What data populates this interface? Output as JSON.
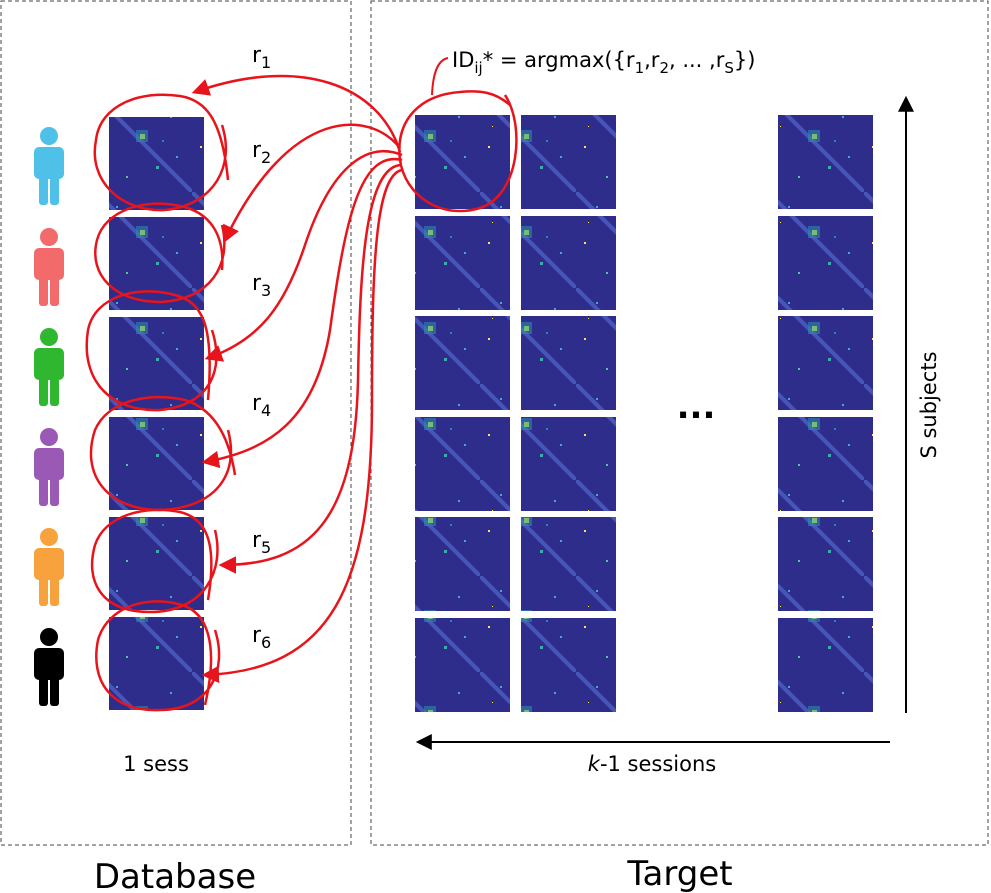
{
  "panels": {
    "database": {
      "title": "Database",
      "caption": "1 sess"
    },
    "target": {
      "title": "Target",
      "x_axis_label_italic": "k",
      "x_axis_label_rest": "-1 sessions",
      "y_axis_label": "S subjects",
      "ellipsis": "..."
    }
  },
  "formula": {
    "lhs": "ID",
    "lhs_sub": "ij",
    "rhs_prefix": "* = argmax({r",
    "r1_sub": "1",
    "sep1": ",r",
    "r2_sub": "2",
    "mid": ", ... ,r",
    "rs_sub": "S",
    "end": "})"
  },
  "correlations": [
    {
      "label": "r",
      "sub": "1"
    },
    {
      "label": "r",
      "sub": "2"
    },
    {
      "label": "r",
      "sub": "3"
    },
    {
      "label": "r",
      "sub": "4"
    },
    {
      "label": "r",
      "sub": "5"
    },
    {
      "label": "r",
      "sub": "6"
    }
  ],
  "subjects": [
    {
      "icon": "person-icon",
      "color": "#4fc1e8"
    },
    {
      "icon": "person-icon",
      "color": "#f26a6a"
    },
    {
      "icon": "person-icon",
      "color": "#2fb82f"
    },
    {
      "icon": "person-icon",
      "color": "#9b59b6"
    },
    {
      "icon": "person-icon",
      "color": "#f7a23c"
    },
    {
      "icon": "person-icon",
      "color": "#000000"
    }
  ],
  "colors": {
    "matrix_bg": "#2e2d8c",
    "arrow": "#e8141b",
    "frame_dash": "#444444"
  }
}
